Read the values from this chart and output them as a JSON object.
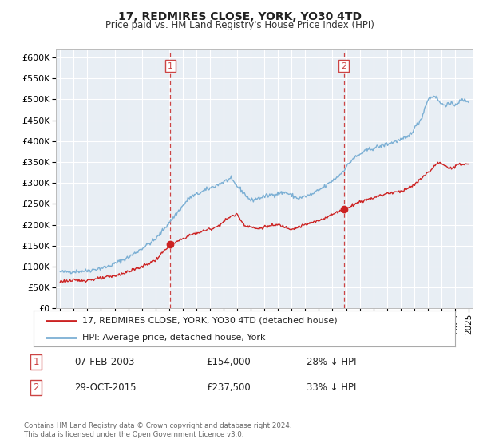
{
  "title": "17, REDMIRES CLOSE, YORK, YO30 4TD",
  "subtitle": "Price paid vs. HM Land Registry's House Price Index (HPI)",
  "ylim": [
    0,
    620000
  ],
  "yticks": [
    0,
    50000,
    100000,
    150000,
    200000,
    250000,
    300000,
    350000,
    400000,
    450000,
    500000,
    550000,
    600000
  ],
  "xlim_start": 1994.7,
  "xlim_end": 2025.3,
  "hpi_color": "#7bafd4",
  "price_color": "#cc2222",
  "marker_color": "#cc2222",
  "sale1_x": 2003.1,
  "sale1_y": 154000,
  "sale1_label": "1",
  "sale2_x": 2015.83,
  "sale2_y": 237500,
  "sale2_label": "2",
  "vline_color": "#cc4444",
  "background_color": "#e8eef4",
  "grid_color": "#ffffff",
  "legend_label_price": "17, REDMIRES CLOSE, YORK, YO30 4TD (detached house)",
  "legend_label_hpi": "HPI: Average price, detached house, York",
  "table_row1": [
    "1",
    "07-FEB-2003",
    "£154,000",
    "28% ↓ HPI"
  ],
  "table_row2": [
    "2",
    "29-OCT-2015",
    "£237,500",
    "33% ↓ HPI"
  ],
  "footnote": "Contains HM Land Registry data © Crown copyright and database right 2024.\nThis data is licensed under the Open Government Licence v3.0.",
  "hpi_anchors_x": [
    1995.0,
    1997.0,
    1998.5,
    2000.0,
    2002.0,
    2003.5,
    2004.5,
    2007.5,
    2009.0,
    2010.0,
    2011.5,
    2012.5,
    2013.5,
    2014.5,
    2015.5,
    2016.5,
    2017.5,
    2018.5,
    2019.5,
    2020.5,
    2021.5,
    2022.0,
    2022.5,
    2023.0,
    2023.5,
    2024.0,
    2024.5,
    2025.0
  ],
  "hpi_anchors_y": [
    87000,
    90000,
    100000,
    122000,
    165000,
    225000,
    265000,
    310000,
    258000,
    268000,
    278000,
    263000,
    273000,
    293000,
    318000,
    358000,
    378000,
    388000,
    398000,
    408000,
    452000,
    500000,
    510000,
    488000,
    488000,
    488000,
    498000,
    496000
  ],
  "price_anchors_x": [
    1995.0,
    1997.0,
    1998.0,
    1999.0,
    2000.0,
    2001.0,
    2002.0,
    2003.1,
    2003.5,
    2004.5,
    2005.5,
    2006.5,
    2007.5,
    2008.0,
    2008.5,
    2009.5,
    2010.0,
    2011.0,
    2012.0,
    2013.0,
    2014.0,
    2015.0,
    2015.83,
    2016.0,
    2017.0,
    2018.0,
    2019.0,
    2020.0,
    2021.0,
    2021.5,
    2022.0,
    2022.5,
    2022.8,
    2023.0,
    2023.5,
    2024.0,
    2024.5,
    2025.0
  ],
  "price_anchors_y": [
    65000,
    68000,
    72000,
    78000,
    88000,
    100000,
    115000,
    154000,
    158000,
    175000,
    185000,
    195000,
    220000,
    225000,
    200000,
    190000,
    195000,
    200000,
    190000,
    200000,
    210000,
    225000,
    237500,
    240000,
    255000,
    265000,
    275000,
    280000,
    295000,
    310000,
    325000,
    340000,
    350000,
    345000,
    335000,
    340000,
    345000,
    345000
  ]
}
